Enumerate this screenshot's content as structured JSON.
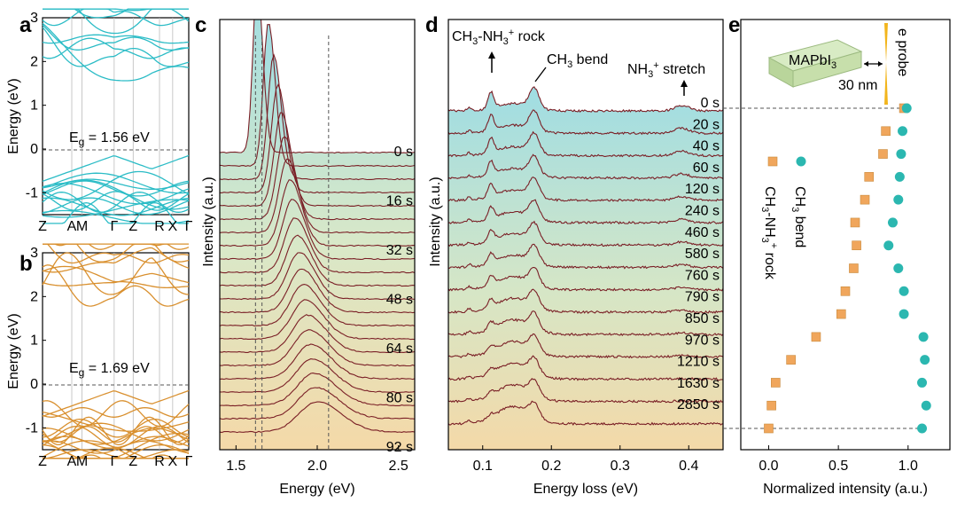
{
  "chart_data": [
    {
      "panel": "a",
      "type": "line",
      "title": "",
      "ylabel": "Energy (eV)",
      "ylim": [
        -1.5,
        3
      ],
      "y_ticks": [
        "-1",
        "0",
        "1",
        "2",
        "3"
      ],
      "k_labels": [
        "Z",
        "A",
        "M",
        "Γ",
        "Z",
        "R",
        "X",
        "Γ"
      ],
      "annotation": "E_g = 1.56 eV",
      "band_gap_eV": 1.56,
      "color": "#2bbcc6"
    },
    {
      "panel": "b",
      "type": "line",
      "title": "",
      "ylabel": "Energy (eV)",
      "ylim": [
        -1.5,
        3
      ],
      "y_ticks": [
        "-1",
        "0",
        "1",
        "2",
        "3"
      ],
      "k_labels": [
        "Z",
        "A",
        "M",
        "Γ",
        "Z",
        "R",
        "X",
        "Γ"
      ],
      "annotation": "E_g = 1.69 eV",
      "band_gap_eV": 1.69,
      "color": "#d9902f"
    },
    {
      "panel": "c",
      "type": "line",
      "xlabel": "Energy  (eV)",
      "ylabel": "Intensity (a.u.)",
      "xlim": [
        1.4,
        2.6
      ],
      "x_ticks": [
        "1.5",
        "2.0",
        "2.5"
      ],
      "time_labels": [
        "0 s",
        "16 s",
        "32 s",
        "48 s",
        "64 s",
        "80 s",
        "92 s"
      ],
      "n_spectra": 22,
      "peak_energy_start_eV": 1.63,
      "peak_energy_end_eV": 2.0,
      "dashed_lines_eV": [
        1.62,
        1.66,
        2.07
      ]
    },
    {
      "panel": "d",
      "type": "line",
      "xlabel": "Energy loss (eV)",
      "ylabel": "Intensity (a.u.)",
      "xlim": [
        0.05,
        0.45
      ],
      "x_ticks": [
        "0.1",
        "0.2",
        "0.3",
        "0.4"
      ],
      "time_labels": [
        "0 s",
        "20 s",
        "40 s",
        "60 s",
        "120 s",
        "240 s",
        "460 s",
        "580 s",
        "760 s",
        "790 s",
        "850 s",
        "970 s",
        "1210 s",
        "1630 s",
        "2850 s"
      ],
      "peak_labels": [
        "CH₃-NH₃⁺ rock",
        "CH₃ bend",
        "NH₃⁺ stretch"
      ]
    },
    {
      "panel": "e",
      "type": "scatter",
      "xlabel": "Normalized intensity (a.u.)",
      "xlim": [
        -0.2,
        1.3
      ],
      "x_ticks": [
        "0.0",
        "0.5",
        "1.0"
      ],
      "inset_label": "MAPbI₃",
      "inset_distance": "30 nm",
      "probe_label": "e probe",
      "series": [
        {
          "name": "CH₃ bend",
          "color": "#2bb7b0",
          "values": [
            0.99,
            0.96,
            0.95,
            0.94,
            0.93,
            0.89,
            0.86,
            0.93,
            0.97,
            0.97,
            1.11,
            1.12,
            1.1,
            1.13,
            1.1
          ]
        },
        {
          "name": "CH₃-NH₃⁺ rock",
          "color": "#f0a65c",
          "values": [
            0.97,
            0.84,
            0.82,
            0.72,
            0.69,
            0.62,
            0.63,
            0.61,
            0.55,
            0.52,
            0.34,
            0.16,
            0.05,
            0.02,
            0.0
          ]
        }
      ]
    }
  ],
  "labels": {
    "panel_a": "a",
    "panel_b": "b",
    "panel_c": "c",
    "panel_d": "d",
    "panel_e": "e",
    "eg_a": "E",
    "eg_a_sub": "g",
    "eg_a_val": " = 1.56 eV",
    "eg_b": "E",
    "eg_b_sub": "g",
    "eg_b_val": " = 1.69 eV",
    "ylabel_ab": "Energy (eV)",
    "mapbi3_main": "MAPbI",
    "mapbi3_sub": "3",
    "dist": "30 nm",
    "probe": "e probe",
    "legend_bend": "CH",
    "legend_bend_sub": "3",
    "legend_bend_rest": " bend",
    "legend_rock": "CH",
    "legend_rock_sub": "3",
    "legend_rock_mid": "-NH",
    "legend_rock_sub2": "3",
    "legend_rock_sup": "+",
    "legend_rock_rest": " rock",
    "d_rock": "CH",
    "d_rock_sub": "3",
    "d_rock_mid": "-NH",
    "d_rock_sub2": "3",
    "d_rock_sup": "+",
    "d_rock_rest": " rock",
    "d_bend": "CH",
    "d_bend_sub": "3",
    "d_bend_rest": " bend",
    "d_stretch": "NH",
    "d_stretch_sub": "3",
    "d_stretch_sup": "+",
    "d_stretch_rest": " stretch"
  }
}
